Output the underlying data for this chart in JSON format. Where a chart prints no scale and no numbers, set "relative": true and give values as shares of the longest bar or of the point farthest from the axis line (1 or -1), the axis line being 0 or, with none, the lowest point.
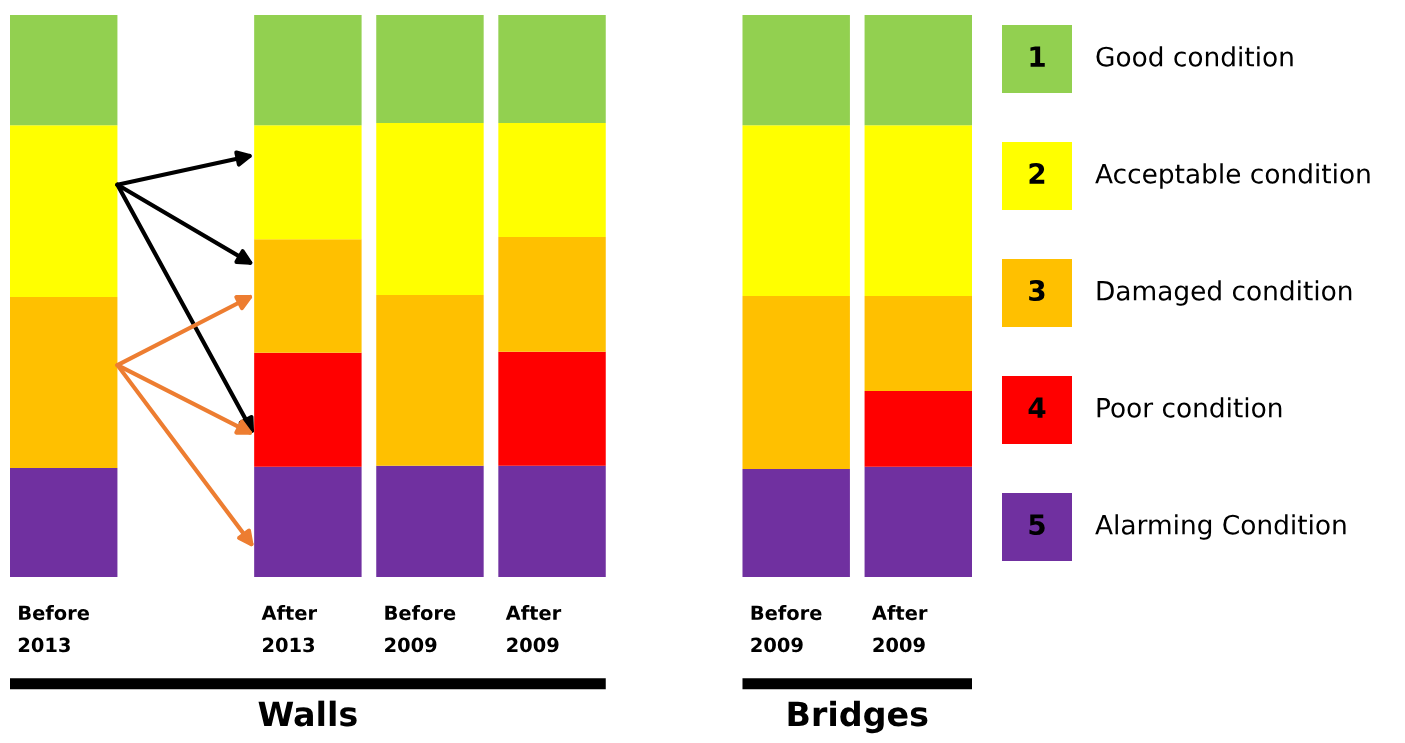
{
  "chart_data": {
    "type": "bar",
    "stacked": true,
    "relative": true,
    "categories": [
      "Before 2013",
      null,
      "After 2013",
      "Before 2009",
      "After 2009",
      null,
      "Before 2009",
      "After 2009"
    ],
    "series": [
      {
        "name": "Alarming Condition",
        "color": "#7030a0",
        "values": [
          0.194,
          null,
          0.196,
          0.198,
          0.198,
          null,
          0.192,
          0.196
        ]
      },
      {
        "name": "Poor condition",
        "color": "#ff0000",
        "values": [
          null,
          null,
          0.203,
          null,
          0.203,
          null,
          null,
          0.135
        ]
      },
      {
        "name": "Damaged condition",
        "color": "#ffc000",
        "values": [
          0.304,
          null,
          0.202,
          0.304,
          0.204,
          null,
          0.308,
          0.169
        ]
      },
      {
        "name": "Acceptable condition",
        "color": "#ffff00",
        "values": [
          0.306,
          null,
          0.203,
          0.306,
          0.203,
          null,
          0.304,
          0.304
        ]
      },
      {
        "name": "Good condition",
        "color": "#92d050",
        "values": [
          0.196,
          null,
          0.196,
          0.192,
          0.192,
          null,
          0.196,
          0.196
        ]
      }
    ],
    "annotations": [
      "5",
      "4",
      "3",
      "2",
      "1",
      "Walls",
      "Bridges"
    ],
    "legend": "right"
  }
}
